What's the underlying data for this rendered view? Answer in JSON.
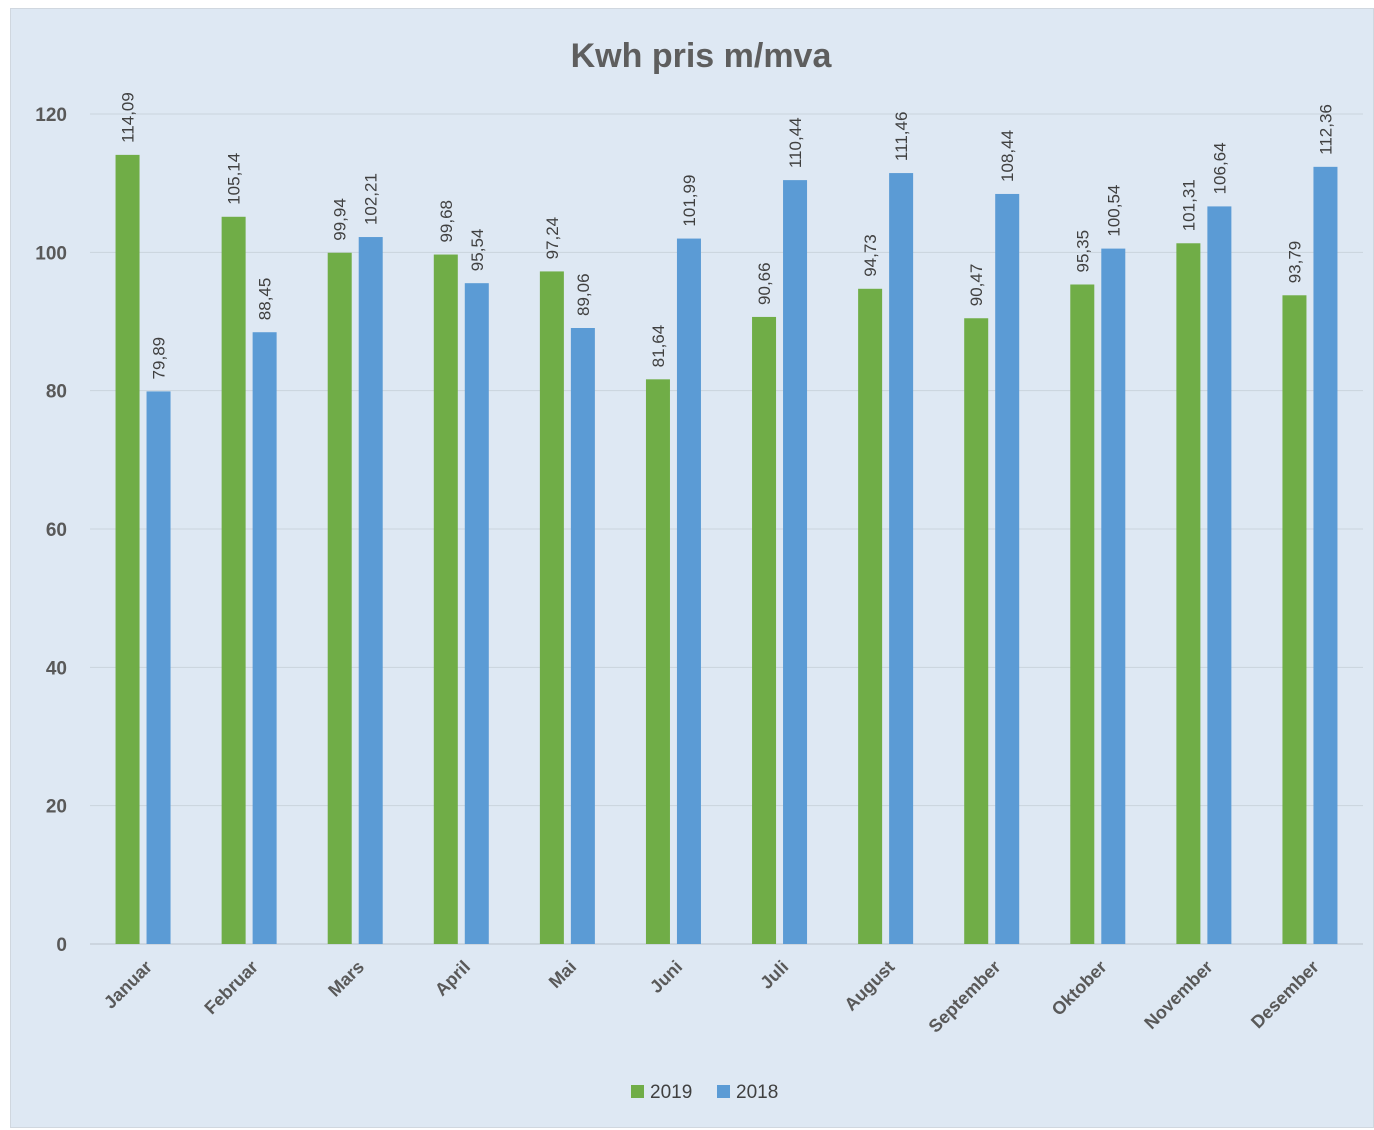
{
  "chart_data": {
    "type": "bar",
    "title": "Kwh pris m/mva",
    "xlabel": "",
    "ylabel": "",
    "ylim": [
      0,
      120
    ],
    "yticks": [
      0,
      20,
      40,
      60,
      80,
      100,
      120
    ],
    "grid": true,
    "legend_position": "bottom",
    "categories": [
      "Januar",
      "Februar",
      "Mars",
      "April",
      "Mai",
      "Juni",
      "Juli",
      "August",
      "September",
      "Oktober",
      "November",
      "Desember"
    ],
    "series": [
      {
        "name": "2019",
        "color": "#70ad47",
        "values": [
          114.09,
          105.14,
          99.94,
          99.68,
          97.24,
          81.64,
          90.66,
          94.73,
          90.47,
          95.35,
          101.31,
          93.79
        ],
        "labels": [
          "114,09",
          "105,14",
          "99,94",
          "99,68",
          "97,24",
          "81,64",
          "90,66",
          "94,73",
          "90,47",
          "95,35",
          "101,31",
          "93,79"
        ]
      },
      {
        "name": "2018",
        "color": "#5b9bd5",
        "values": [
          79.89,
          88.45,
          102.21,
          95.54,
          89.06,
          101.99,
          110.44,
          111.46,
          108.44,
          100.54,
          106.64,
          112.36
        ],
        "labels": [
          "79,89",
          "88,45",
          "102,21",
          "95,54",
          "89,06",
          "101,99",
          "110,44",
          "111,46",
          "108,44",
          "100,54",
          "106,64",
          "112,36"
        ]
      }
    ]
  }
}
